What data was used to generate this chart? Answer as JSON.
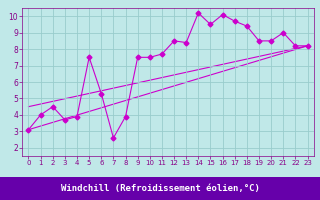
{
  "xlabel": "Windchill (Refroidissement éolien,°C)",
  "background_color": "#c0e8e8",
  "plot_bg_color": "#c0e8e8",
  "line_color": "#cc00cc",
  "grid_color": "#99cccc",
  "bottom_bar_color": "#6600aa",
  "label_text_color": "#ffffff",
  "tick_color": "#880088",
  "xlim": [
    -0.5,
    23.5
  ],
  "ylim": [
    1.5,
    10.5
  ],
  "xticks": [
    0,
    1,
    2,
    3,
    4,
    5,
    6,
    7,
    8,
    9,
    10,
    11,
    12,
    13,
    14,
    15,
    16,
    17,
    18,
    19,
    20,
    21,
    22,
    23
  ],
  "yticks": [
    2,
    3,
    4,
    5,
    6,
    7,
    8,
    9,
    10
  ],
  "data_x": [
    0,
    1,
    2,
    3,
    4,
    5,
    6,
    7,
    8,
    9,
    10,
    11,
    12,
    13,
    14,
    15,
    16,
    17,
    18,
    19,
    20,
    21,
    22,
    23
  ],
  "data_y": [
    3.1,
    4.0,
    4.5,
    3.7,
    3.9,
    7.5,
    5.3,
    2.6,
    3.9,
    7.5,
    7.5,
    7.7,
    8.5,
    8.4,
    10.2,
    9.5,
    10.1,
    9.7,
    9.4,
    8.5,
    8.5,
    9.0,
    8.2,
    8.2
  ],
  "trend1": [
    3.1,
    8.2
  ],
  "trend2": [
    4.5,
    8.2
  ],
  "marker": "D",
  "markersize": 2.5,
  "linewidth": 0.8,
  "tick_fontsize": 5.0,
  "label_fontsize": 6.5
}
